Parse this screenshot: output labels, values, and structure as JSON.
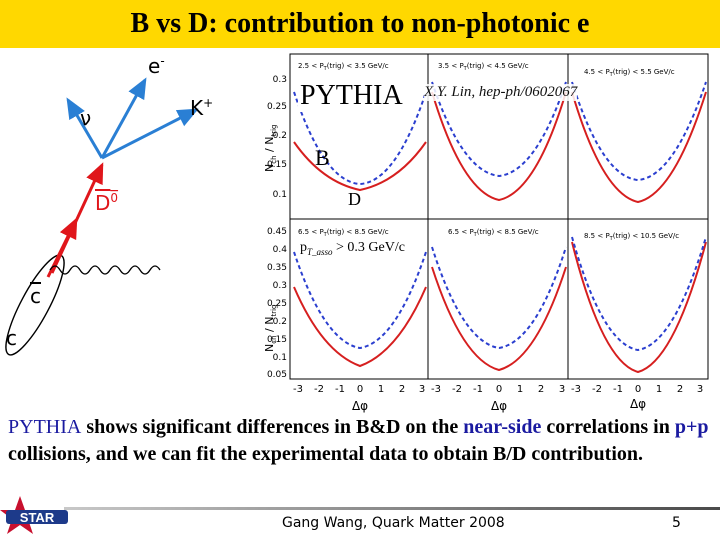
{
  "slide": {
    "title": "B vs D: contribution to non-photonic e",
    "overlay": {
      "pythia": "PYTHIA",
      "citation": "X.Y. Lin, hep-ph/0602067",
      "b": "B",
      "d": "D",
      "pt_cut_main": "p",
      "pt_cut_sub": "T_asso",
      "pt_cut_rest": " > 0.3 GeV/c"
    },
    "body": {
      "part1": "PYTHIA",
      "part2": " shows significant differences in B&D on the ",
      "part3": "near-side",
      "part4": " correlations in ",
      "part5": "p+p",
      "part6": " collisions, and we can fit the experimental data to obtain B/D contribution."
    },
    "footer": {
      "text": "Gang Wang, Quark Matter 2008",
      "page": "5"
    },
    "logo_text": "STAR",
    "colors": {
      "title_bar": "#ffd800",
      "highlight": "#1a1aa0",
      "b_curve": "#d61f1f",
      "d_curve": "#2b3fcf",
      "arrow": "#e0161b"
    }
  },
  "diagram": {
    "labels": {
      "electron": "e",
      "electron_sup": "-",
      "neutrino": "ν",
      "kaon": "K",
      "kaon_sup": "+",
      "dbar0": "D",
      "dbar0_sup": "0",
      "cbar": "c",
      "c": "c"
    }
  },
  "plots": {
    "y_axis_label": "N",
    "y_axis_label_sub": "ch",
    "y_axis_denom": "N",
    "y_axis_denom_sub": "trig",
    "x_axis_label": "Δφ",
    "x_tick_labels": [
      "-3",
      "-2",
      "-1",
      "0",
      "1",
      "2",
      "3"
    ],
    "top_row": {
      "y_ticks": [
        "0.3",
        "0.25",
        "0.2",
        "0.15",
        "0.1"
      ],
      "panels": [
        {
          "label": "2.5 < P",
          "label_sub": "T",
          "label_rest": "(trig) < 3.5 GeV/c"
        },
        {
          "label": "3.5 < P",
          "label_sub": "T",
          "label_rest": "(trig) < 4.5 GeV/c"
        },
        {
          "label": "4.5 < P",
          "label_sub": "T",
          "label_rest": "(trig) < 5.5 GeV/c"
        }
      ]
    },
    "bottom_row": {
      "y_ticks": [
        "0.45",
        "0.4",
        "0.35",
        "0.3",
        "0.25",
        "0.2",
        "0.15",
        "0.1",
        "0.05"
      ],
      "panels": [
        {
          "label": "6.5 < P",
          "label_sub": "T",
          "label_rest": "(trig) < 8.5 GeV/c"
        },
        {
          "label": "6.5 < P",
          "label_sub": "T",
          "label_rest": "(trig) < 8.5 GeV/c"
        },
        {
          "label": "8.5 < P",
          "label_sub": "T",
          "label_rest": "(trig) < 10.5 GeV/c"
        }
      ]
    }
  }
}
